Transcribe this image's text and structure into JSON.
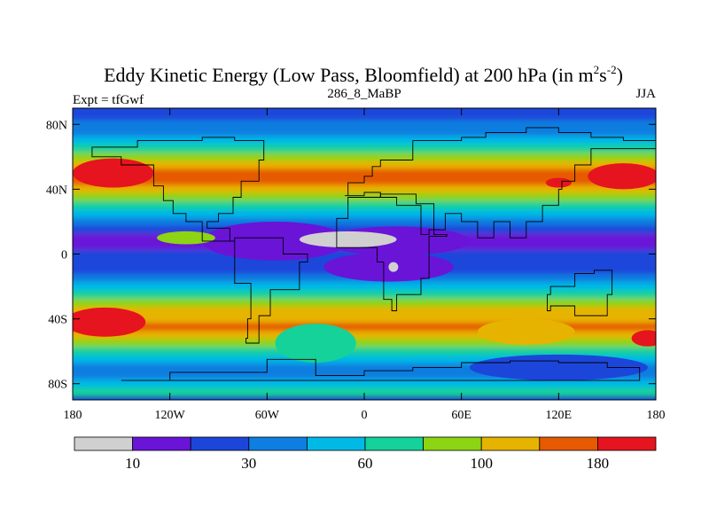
{
  "chart_data": {
    "type": "heatmap",
    "title": "Eddy Kinetic Energy (Low Pass, Bloomfield) at 200 hPa (in m",
    "title_sup1": "2",
    "title_mid": "s",
    "title_sup2": "-2",
    "title_end": ")",
    "left_label": "Expt = tfGwf",
    "center_label": "286_8_MaBP",
    "right_label": "JJA",
    "x_ticks": [
      {
        "value": -180,
        "label": "180"
      },
      {
        "value": -120,
        "label": "120W"
      },
      {
        "value": -60,
        "label": "60W"
      },
      {
        "value": 0,
        "label": "0"
      },
      {
        "value": 60,
        "label": "60E"
      },
      {
        "value": 120,
        "label": "120E"
      },
      {
        "value": 180,
        "label": "180"
      }
    ],
    "y_ticks": [
      {
        "value": 80,
        "label": "80N"
      },
      {
        "value": 40,
        "label": "40N"
      },
      {
        "value": 0,
        "label": "0"
      },
      {
        "value": -40,
        "label": "40S"
      },
      {
        "value": -80,
        "label": "80S"
      }
    ],
    "xlim": [
      -180,
      180
    ],
    "ylim": [
      -90,
      90
    ],
    "colorbar": {
      "colors": [
        "#d0d0d0",
        "#6a14d8",
        "#1c46da",
        "#0e7ee0",
        "#00b9e6",
        "#14d29a",
        "#8cd414",
        "#e6b400",
        "#e65a00",
        "#e6141e"
      ],
      "labels": [
        {
          "boundary": 1,
          "text": "10"
        },
        {
          "boundary": 3,
          "text": "30"
        },
        {
          "boundary": 5,
          "text": "60"
        },
        {
          "boundary": 7,
          "text": "100"
        },
        {
          "boundary": 9,
          "text": "180"
        }
      ]
    },
    "bands": [
      {
        "lat": 85,
        "level": 2
      },
      {
        "lat": 80,
        "level": 3
      },
      {
        "lat": 75,
        "level": 3
      },
      {
        "lat": 70,
        "level": 4
      },
      {
        "lat": 65,
        "level": 5
      },
      {
        "lat": 60,
        "level": 6
      },
      {
        "lat": 55,
        "level": 7
      },
      {
        "lat": 50,
        "level": 8
      },
      {
        "lat": 45,
        "level": 8
      },
      {
        "lat": 40,
        "level": 7
      },
      {
        "lat": 35,
        "level": 6
      },
      {
        "lat": 30,
        "level": 5
      },
      {
        "lat": 25,
        "level": 4
      },
      {
        "lat": 20,
        "level": 3
      },
      {
        "lat": 15,
        "level": 2
      },
      {
        "lat": 10,
        "level": 1
      },
      {
        "lat": 5,
        "level": 1
      },
      {
        "lat": 0,
        "level": 2
      },
      {
        "lat": -5,
        "level": 2
      },
      {
        "lat": -10,
        "level": 2
      },
      {
        "lat": -15,
        "level": 3
      },
      {
        "lat": -20,
        "level": 4
      },
      {
        "lat": -25,
        "level": 5
      },
      {
        "lat": -30,
        "level": 6
      },
      {
        "lat": -35,
        "level": 7
      },
      {
        "lat": -40,
        "level": 7
      },
      {
        "lat": -45,
        "level": 8
      },
      {
        "lat": -50,
        "level": 7
      },
      {
        "lat": -55,
        "level": 6
      },
      {
        "lat": -60,
        "level": 5
      },
      {
        "lat": -65,
        "level": 4
      },
      {
        "lat": -70,
        "level": 3
      },
      {
        "lat": -75,
        "level": 3
      },
      {
        "lat": -80,
        "level": 4
      },
      {
        "lat": -85,
        "level": 5
      }
    ],
    "anomalies": [
      {
        "lon": -55,
        "lat": 8,
        "rlon": 45,
        "rlat": 12,
        "level": 1
      },
      {
        "lon": 20,
        "lat": 8,
        "rlon": 45,
        "rlat": 9,
        "level": 1
      },
      {
        "lon": 15,
        "lat": -8,
        "rlon": 40,
        "rlat": 9,
        "level": 1
      },
      {
        "lon": -10,
        "lat": 9,
        "rlon": 30,
        "rlat": 5,
        "level": 0
      },
      {
        "lon": 18,
        "lat": -8,
        "rlon": 3,
        "rlat": 3,
        "level": 0
      },
      {
        "lon": -155,
        "lat": 50,
        "rlon": 25,
        "rlat": 9,
        "level": 9
      },
      {
        "lon": 160,
        "lat": 48,
        "rlon": 22,
        "rlat": 8,
        "level": 9
      },
      {
        "lon": 120,
        "lat": 44,
        "rlon": 8,
        "rlat": 3,
        "level": 9
      },
      {
        "lon": -160,
        "lat": -42,
        "rlon": 25,
        "rlat": 9,
        "level": 9
      },
      {
        "lon": 175,
        "lat": -52,
        "rlon": 10,
        "rlat": 5,
        "level": 9
      },
      {
        "lon": 100,
        "lat": -48,
        "rlon": 30,
        "rlat": 8,
        "level": 7
      },
      {
        "lon": -30,
        "lat": -55,
        "rlon": 25,
        "rlat": 12,
        "level": 5
      },
      {
        "lon": 120,
        "lat": -70,
        "rlon": 55,
        "rlat": 8,
        "level": 2
      },
      {
        "lon": -110,
        "lat": 10,
        "rlon": 18,
        "rlat": 4,
        "level": 6
      }
    ],
    "coastlines": [
      [
        [
          -12,
          36
        ],
        [
          -10,
          44
        ],
        [
          0,
          48
        ],
        [
          5,
          54
        ],
        [
          10,
          58
        ],
        [
          30,
          70
        ],
        [
          50,
          70
        ],
        [
          60,
          72
        ],
        [
          75,
          75
        ],
        [
          100,
          78
        ],
        [
          120,
          75
        ],
        [
          140,
          72
        ],
        [
          160,
          70
        ],
        [
          180,
          68
        ],
        [
          180,
          65
        ],
        [
          140,
          55
        ],
        [
          130,
          45
        ],
        [
          122,
          40
        ],
        [
          120,
          30
        ],
        [
          110,
          20
        ],
        [
          100,
          10
        ],
        [
          90,
          20
        ],
        [
          80,
          10
        ],
        [
          70,
          20
        ],
        [
          60,
          25
        ],
        [
          50,
          15
        ],
        [
          40,
          12
        ],
        [
          35,
          30
        ],
        [
          20,
          35
        ],
        [
          10,
          38
        ],
        [
          0,
          36
        ],
        [
          -12,
          36
        ]
      ],
      [
        [
          -17,
          22
        ],
        [
          -10,
          35
        ],
        [
          10,
          37
        ],
        [
          32,
          31
        ],
        [
          43,
          12
        ],
        [
          51,
          11
        ],
        [
          40,
          -15
        ],
        [
          35,
          -25
        ],
        [
          20,
          -35
        ],
        [
          17,
          -28
        ],
        [
          12,
          -5
        ],
        [
          8,
          4
        ],
        [
          -8,
          4
        ],
        [
          -17,
          14
        ],
        [
          -17,
          22
        ]
      ],
      [
        [
          -168,
          66
        ],
        [
          -140,
          70
        ],
        [
          -100,
          72
        ],
        [
          -80,
          70
        ],
        [
          -62,
          58
        ],
        [
          -65,
          45
        ],
        [
          -76,
          35
        ],
        [
          -81,
          25
        ],
        [
          -90,
          20
        ],
        [
          -97,
          16
        ],
        [
          -83,
          8
        ],
        [
          -80,
          8
        ],
        [
          -100,
          20
        ],
        [
          -110,
          25
        ],
        [
          -118,
          33
        ],
        [
          -124,
          42
        ],
        [
          -130,
          55
        ],
        [
          -150,
          60
        ],
        [
          -168,
          66
        ]
      ],
      [
        [
          -80,
          10
        ],
        [
          -60,
          10
        ],
        [
          -50,
          0
        ],
        [
          -35,
          -5
        ],
        [
          -40,
          -22
        ],
        [
          -58,
          -38
        ],
        [
          -65,
          -55
        ],
        [
          -73,
          -52
        ],
        [
          -72,
          -40
        ],
        [
          -70,
          -18
        ],
        [
          -80,
          -5
        ],
        [
          -80,
          10
        ]
      ],
      [
        [
          115,
          -20
        ],
        [
          130,
          -12
        ],
        [
          142,
          -10
        ],
        [
          153,
          -25
        ],
        [
          150,
          -38
        ],
        [
          140,
          -38
        ],
        [
          130,
          -32
        ],
        [
          115,
          -35
        ],
        [
          113,
          -25
        ],
        [
          115,
          -20
        ]
      ],
      [
        [
          -60,
          -65
        ],
        [
          -30,
          -75
        ],
        [
          0,
          -72
        ],
        [
          30,
          -70
        ],
        [
          60,
          -67
        ],
        [
          90,
          -66
        ],
        [
          120,
          -67
        ],
        [
          150,
          -70
        ],
        [
          170,
          -78
        ],
        [
          -150,
          -78
        ],
        [
          -120,
          -73
        ],
        [
          -80,
          -73
        ],
        [
          -60,
          -65
        ]
      ]
    ]
  }
}
